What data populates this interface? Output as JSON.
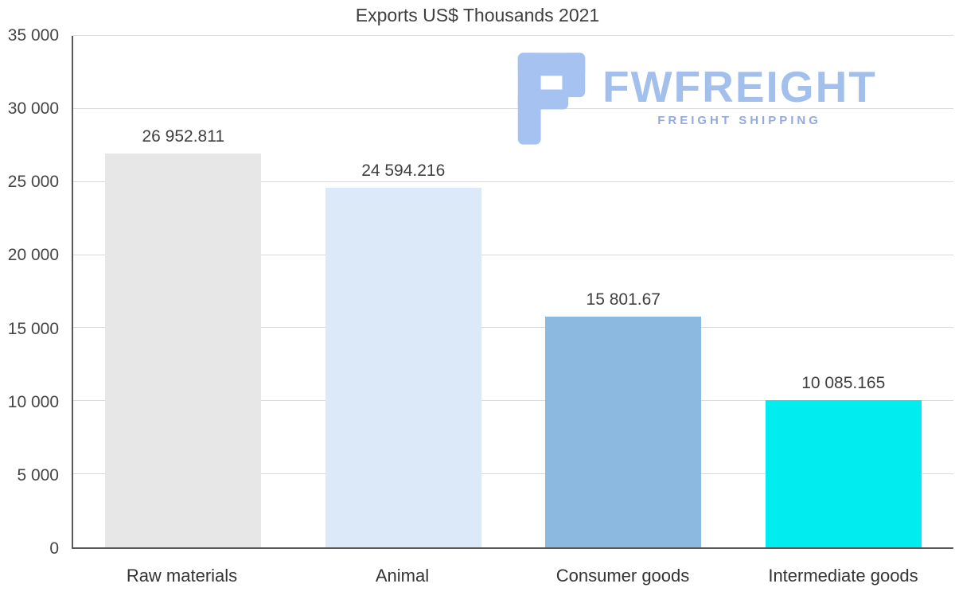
{
  "chart_data": {
    "type": "bar",
    "title": "Exports US$ Thousands 2021",
    "categories": [
      "Raw materials",
      "Animal",
      "Consumer goods",
      "Intermediate goods"
    ],
    "values": [
      26952.811,
      24594.216,
      15801.67,
      10085.165
    ],
    "value_labels": [
      "26 952.811",
      "24 594.216",
      "15 801.67",
      "10 085.165"
    ],
    "bar_colors": [
      "#e7e7e7",
      "#dce9f8",
      "#8cb9e0",
      "#00ecee"
    ],
    "ylim": [
      0,
      35000
    ],
    "ytick_values": [
      0,
      5000,
      10000,
      15000,
      20000,
      25000,
      30000,
      35000
    ],
    "ytick_labels": [
      "0",
      "5 000",
      "10 000",
      "15 000",
      "20 000",
      "25 000",
      "30 000",
      "35 000"
    ],
    "grid": true,
    "legend_position": "none",
    "xlabel": "",
    "ylabel": ""
  },
  "watermark": {
    "brand": "FWFREIGHT",
    "tagline": "FREIGHT SHIPPING",
    "brand_color": "#a3bfec",
    "tagline_color": "#94aadd",
    "icon_color": "#a5c2f0",
    "icon": "blocky-f-logo"
  }
}
